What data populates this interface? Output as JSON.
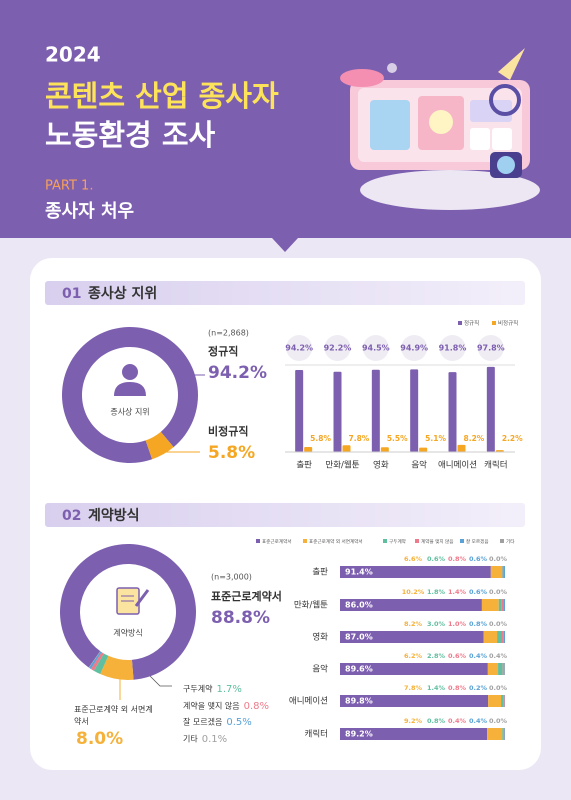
{
  "header": {
    "year": "2024",
    "title_line1": "콘텐츠 산업 종사자",
    "title_line2": "노동환경 조사",
    "part": "PART 1.",
    "subtitle": "종사자 처우"
  },
  "sections": [
    {
      "number": "01",
      "title": "종사상 지위"
    },
    {
      "number": "02",
      "title": "계약방식"
    }
  ],
  "chart_data": [
    {
      "type": "pie",
      "donut": true,
      "center_label": "종사상 지위",
      "note": "(n=2,868)",
      "categories": [
        "정규직",
        "비정규직"
      ],
      "values": [
        94.2,
        5.8
      ],
      "value_labels": [
        "94.2%",
        "5.8%"
      ],
      "colors": [
        "#7d5fb0",
        "#f5a623"
      ]
    },
    {
      "type": "bar",
      "categories": [
        "출판",
        "만화/웹툰",
        "영화",
        "음악",
        "애니메이션",
        "캐릭터"
      ],
      "ylim": [
        0,
        100
      ],
      "series": [
        {
          "name": "정규직",
          "color": "#7d5fb0",
          "values": [
            94.2,
            92.2,
            94.5,
            94.9,
            91.8,
            97.8
          ],
          "value_labels": [
            "94.2%",
            "92.2%",
            "94.5%",
            "94.9%",
            "91.8%",
            "97.8%"
          ]
        },
        {
          "name": "비정규직",
          "color": "#f5a623",
          "values": [
            5.8,
            7.8,
            5.5,
            5.1,
            8.2,
            2.2
          ],
          "value_labels": [
            "5.8%",
            "7.8%",
            "5.5%",
            "5.1%",
            "8.2%",
            "2.2%"
          ]
        }
      ]
    },
    {
      "type": "pie",
      "donut": true,
      "center_label": "계약방식",
      "note": "(n=3,000)",
      "categories": [
        "표준근로계약서",
        "표준근로계약 외 서면계약서",
        "구두계약",
        "계약을 맺지 않음",
        "잘 모르겠음",
        "기타"
      ],
      "values": [
        88.8,
        8.0,
        1.7,
        0.8,
        0.5,
        0.1
      ],
      "value_labels": [
        "88.8%",
        "8.0%",
        "1.7%",
        "0.8%",
        "0.5%",
        "0.1%"
      ],
      "colors": [
        "#7d5fb0",
        "#f5b13a",
        "#5fbf9f",
        "#ee7b8b",
        "#5aa2d6",
        "#a0a0a0"
      ]
    },
    {
      "type": "stacked_bar",
      "orientation": "horizontal",
      "categories": [
        "출판",
        "만화/웹툰",
        "영화",
        "음악",
        "애니메이션",
        "캐릭터"
      ],
      "xlim": [
        0,
        100
      ],
      "series": [
        {
          "name": "표준근로계약서",
          "color": "#7d5fb0",
          "values": [
            91.4,
            86.0,
            87.0,
            89.6,
            89.8,
            89.2
          ],
          "value_labels": [
            "91.4%",
            "86.0%",
            "87.0%",
            "89.6%",
            "89.8%",
            "89.2%"
          ]
        },
        {
          "name": "표준근로계약 외 서면계약서",
          "color": "#f5b13a",
          "values": [
            6.6,
            10.2,
            8.2,
            6.2,
            7.8,
            9.2
          ],
          "value_labels": [
            "6.6%",
            "10.2%",
            "8.2%",
            "6.2%",
            "7.8%",
            "9.2%"
          ]
        },
        {
          "name": "구두계약",
          "color": "#5fbf9f",
          "values": [
            0.6,
            1.8,
            3.0,
            2.8,
            1.4,
            0.8
          ],
          "value_labels": [
            "0.6%",
            "1.8%",
            "3.0%",
            "2.8%",
            "1.4%",
            "0.8%"
          ]
        },
        {
          "name": "계약을 맺지 않음",
          "color": "#ee7b8b",
          "values": [
            0.8,
            1.4,
            1.0,
            0.6,
            0.8,
            0.4
          ],
          "value_labels": [
            "0.8%",
            "1.4%",
            "1.0%",
            "0.6%",
            "0.8%",
            "0.4%"
          ]
        },
        {
          "name": "잘 모르겠음",
          "color": "#5aa2d6",
          "values": [
            0.6,
            0.6,
            0.8,
            0.4,
            0.2,
            0.4
          ],
          "value_labels": [
            "0.6%",
            "0.6%",
            "0.8%",
            "0.4%",
            "0.2%",
            "0.4%"
          ]
        },
        {
          "name": "기타",
          "color": "#a0a0a0",
          "values": [
            0.0,
            0.0,
            0.0,
            0.4,
            0.0,
            0.0
          ],
          "value_labels": [
            "0.0%",
            "0.0%",
            "0.0%",
            "0.4%",
            "0.0%",
            "0.0%"
          ]
        }
      ]
    }
  ]
}
